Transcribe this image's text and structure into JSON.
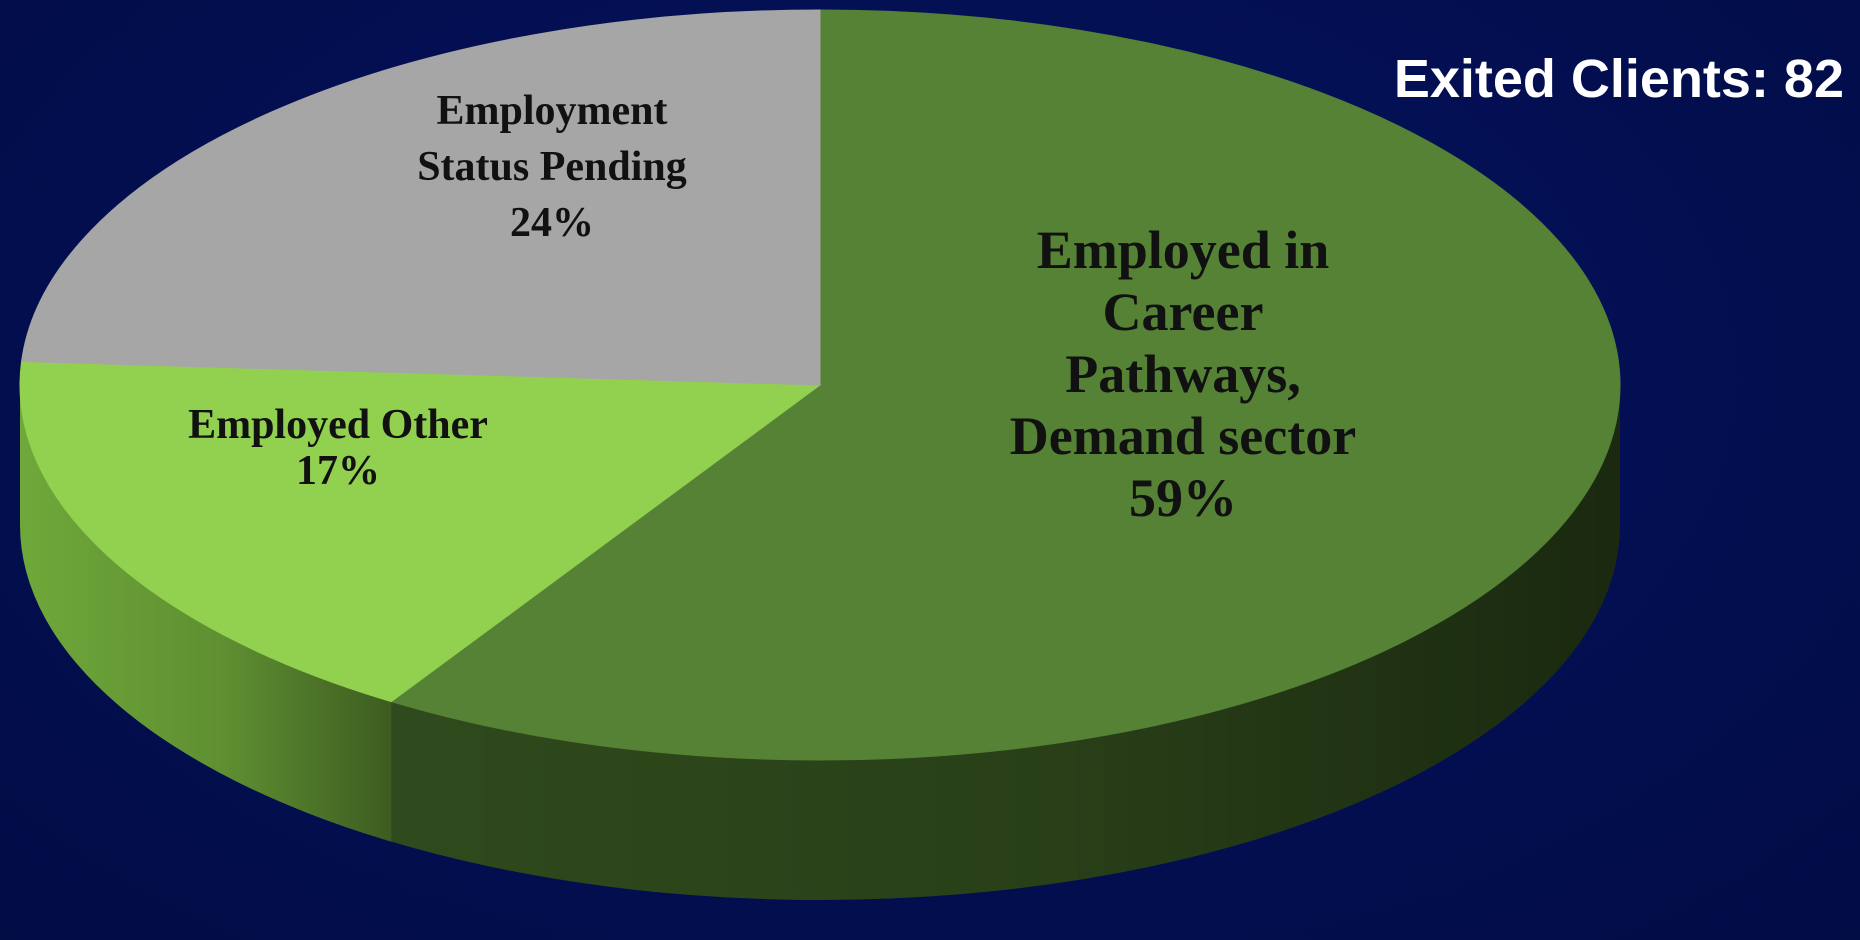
{
  "headline": "Exited Clients: 82",
  "chart_data": {
    "type": "pie",
    "three_d": true,
    "title": "",
    "slices": [
      {
        "label_lines": [
          "Employed in",
          "Career",
          "Pathways,",
          "Demand sector"
        ],
        "percent_label": "59%",
        "value": 59,
        "color": "#558235",
        "side_color": "#2f4a1c"
      },
      {
        "label_lines": [
          "Employed Other"
        ],
        "percent_label": "17%",
        "value": 17,
        "color": "#92d050",
        "side_color": "#6fa83a"
      },
      {
        "label_lines": [
          "Employment",
          "Status Pending"
        ],
        "percent_label": "24%",
        "value": 24,
        "color": "#a6a6a6",
        "side_color": "#7a7a7a"
      }
    ],
    "start_angle_deg": -90,
    "direction": "clockwise"
  },
  "colors": {
    "background": "#030f52",
    "headline": "#ffffff"
  }
}
